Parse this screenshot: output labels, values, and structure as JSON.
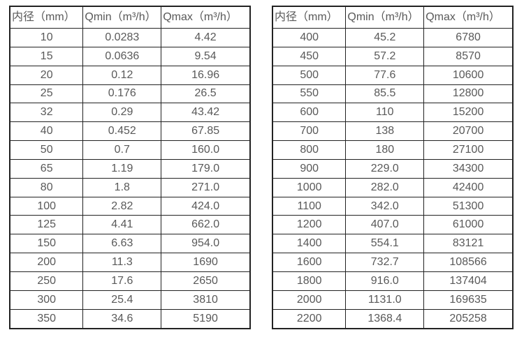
{
  "page": {
    "background": "#ffffff",
    "text_color": "#595959",
    "border_color": "#222222"
  },
  "tables": [
    {
      "name": "flow-range-table-small-diameters",
      "headers": [
        "内径（mm）",
        "Qmin（m³/h）",
        "Qmax（m³/h）"
      ],
      "rows": [
        [
          "10",
          "0.0283",
          "4.42"
        ],
        [
          "15",
          "0.0636",
          "9.54"
        ],
        [
          "20",
          "0.12",
          "16.96"
        ],
        [
          "25",
          "0.176",
          "26.5"
        ],
        [
          "32",
          "0.29",
          "43.42"
        ],
        [
          "40",
          "0.452",
          "67.85"
        ],
        [
          "50",
          "0.7",
          "160.0"
        ],
        [
          "65",
          "1.19",
          "179.0"
        ],
        [
          "80",
          "1.8",
          "271.0"
        ],
        [
          "100",
          "2.82",
          "424.0"
        ],
        [
          "125",
          "4.41",
          "662.0"
        ],
        [
          "150",
          "6.63",
          "954.0"
        ],
        [
          "200",
          "11.3",
          "1690"
        ],
        [
          "250",
          "17.6",
          "2650"
        ],
        [
          "300",
          "25.4",
          "3810"
        ],
        [
          "350",
          "34.6",
          "5190"
        ]
      ]
    },
    {
      "name": "flow-range-table-large-diameters",
      "headers": [
        "内径（mm）",
        "Qmin（m³/h）",
        "Qmax（m³/h）"
      ],
      "rows": [
        [
          "400",
          "45.2",
          "6780"
        ],
        [
          "450",
          "57.2",
          "8570"
        ],
        [
          "500",
          "77.6",
          "10600"
        ],
        [
          "550",
          "85.5",
          "12800"
        ],
        [
          "600",
          "110",
          "15200"
        ],
        [
          "700",
          "138",
          "20700"
        ],
        [
          "800",
          "180",
          "27100"
        ],
        [
          "900",
          "229.0",
          "34300"
        ],
        [
          "1000",
          "282.0",
          "42400"
        ],
        [
          "1100",
          "342.0",
          "51300"
        ],
        [
          "1200",
          "407.0",
          "61000"
        ],
        [
          "1400",
          "554.1",
          "83121"
        ],
        [
          "1600",
          "732.7",
          "108566"
        ],
        [
          "1800",
          "916.0",
          "137404"
        ],
        [
          "2000",
          "1131.0",
          "169635"
        ],
        [
          "2200",
          "1368.4",
          "205258"
        ]
      ]
    }
  ]
}
